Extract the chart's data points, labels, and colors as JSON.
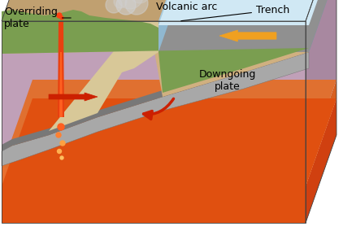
{
  "labels": {
    "overriding_plate": "Overriding\nplate",
    "volcanic_arc": "Volcanic arc",
    "trench": "Trench",
    "downgoing_plate": "Downgoing\nplate"
  },
  "colors": {
    "white_bg": "#ffffff",
    "sky": "#f0f0f0",
    "mantle_purple": "#c8a8c0",
    "mantle_purple_dark": "#b090a8",
    "mantle_purple_side": "#b898b0",
    "hot_orange": "#e8702a",
    "hot_orange2": "#f09050",
    "hot_yellow": "#f5c060",
    "continental_tan": "#d4b888",
    "continental_tan2": "#c8a870",
    "green_land": "#7a9e50",
    "green_land2": "#8aae60",
    "ocean_blue": "#90bcd8",
    "ocean_blue2": "#a0cce0",
    "ocean_blue_light": "#b8dce8",
    "ocean_blue_top": "#c8e4f0",
    "ocean_side": "#6090b0",
    "slab_gray": "#909090",
    "slab_gray2": "#a8a8a8",
    "slab_dark": "#787878",
    "wedge_tan": "#d8c898",
    "magma_red": "#e83000",
    "magma_orange": "#f07020",
    "magma_yellow": "#f8c030",
    "smoke_gray": "#c8c8c8",
    "arrow_red": "#cc2000",
    "arrow_orange": "#f0a020",
    "line_dark": "#303030",
    "white": "#ffffff"
  },
  "font_sizes": {
    "label": 9
  }
}
